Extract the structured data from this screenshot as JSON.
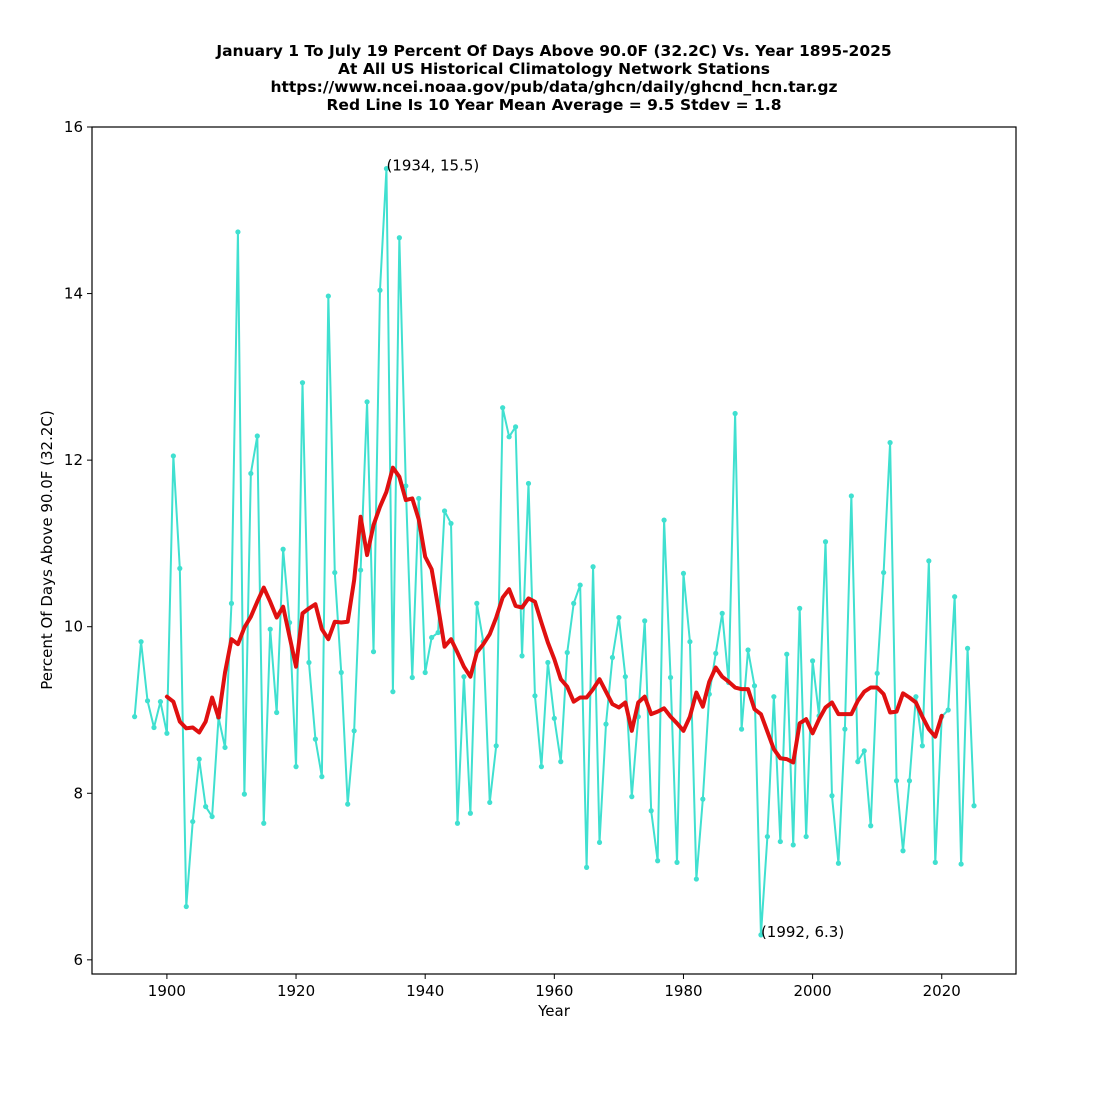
{
  "chart_data": {
    "type": "line",
    "title_lines": [
      "January 1 To July 19 Percent Of Days Above 90.0F (32.2C) Vs. Year 1895-2025",
      "At All US Historical Climatology Network Stations",
      "https://www.ncei.noaa.gov/pub/data/ghcn/daily/ghcnd_hcn.tar.gz",
      "Red Line Is 10 Year Mean  Average = 9.5 Stdev = 1.8"
    ],
    "xlabel": "Year",
    "ylabel": "Percent Of Days Above 90.0F (32.2C)",
    "xlim": [
      1888.4,
      2031.5
    ],
    "ylim": [
      5.83,
      16
    ],
    "xticks": [
      1900,
      1920,
      1940,
      1960,
      1980,
      2000,
      2020
    ],
    "xtick_labels": [
      "1900",
      "1920",
      "1940",
      "1960",
      "1980",
      "2000",
      "2020"
    ],
    "yticks": [
      6,
      8,
      10,
      12,
      14,
      16
    ],
    "ytick_labels": [
      "6",
      "8",
      "10",
      "12",
      "14",
      "16"
    ],
    "grid": false,
    "legend": null,
    "colors": {
      "series": "#40e0d0",
      "mean": "#e01010"
    },
    "series": [
      {
        "name": "Percent of days above 90.0F",
        "x_start": 1895,
        "values": [
          8.92,
          9.82,
          9.11,
          8.79,
          9.1,
          8.72,
          12.05,
          10.7,
          6.64,
          7.66,
          8.41,
          7.84,
          7.72,
          8.91,
          8.55,
          10.28,
          14.74,
          7.99,
          11.84,
          12.29,
          7.64,
          9.97,
          8.97,
          10.93,
          10.05,
          8.32,
          12.93,
          9.57,
          8.65,
          8.2,
          13.97,
          10.65,
          9.45,
          7.87,
          8.75,
          10.68,
          12.7,
          9.7,
          14.04,
          15.5,
          9.22,
          14.67,
          11.69,
          9.39,
          11.54,
          9.45,
          9.87,
          9.93,
          11.39,
          11.24,
          7.64,
          9.4,
          7.76,
          10.28,
          9.82,
          7.89,
          8.57,
          12.63,
          12.28,
          12.4,
          9.65,
          11.72,
          9.17,
          8.32,
          9.57,
          8.9,
          8.38,
          9.69,
          10.28,
          10.5,
          7.11,
          10.72,
          7.41,
          8.83,
          9.63,
          10.11,
          9.4,
          7.96,
          8.92,
          10.07,
          7.79,
          7.19,
          11.28,
          9.39,
          7.17,
          10.64,
          9.82,
          6.97,
          7.93,
          9.19,
          9.68,
          10.16,
          9.33,
          12.56,
          8.77,
          9.72,
          9.29,
          6.3,
          7.48,
          9.16,
          7.42,
          9.67,
          7.38,
          10.22,
          7.48,
          9.59,
          8.93,
          11.02,
          7.97,
          7.16,
          8.77,
          11.57,
          8.38,
          8.51,
          7.61,
          9.44,
          10.65,
          12.21,
          8.15,
          7.31,
          8.15,
          9.16,
          8.57,
          10.79,
          7.17,
          8.92,
          9.0,
          10.36,
          7.15,
          9.74,
          7.85
        ]
      },
      {
        "name": "10 Year Mean",
        "x_start": 1900,
        "values": [
          9.16,
          9.1,
          8.86,
          8.78,
          8.79,
          8.73,
          8.86,
          9.15,
          8.91,
          9.45,
          9.85,
          9.79,
          9.99,
          10.12,
          10.3,
          10.47,
          10.3,
          10.11,
          10.24,
          9.88,
          9.52,
          10.16,
          10.22,
          10.27,
          9.97,
          9.85,
          10.06,
          10.05,
          10.06,
          10.56,
          11.32,
          10.86,
          11.22,
          11.44,
          11.62,
          11.91,
          11.8,
          11.52,
          11.54,
          11.29,
          10.84,
          10.69,
          10.24,
          9.76,
          9.85,
          9.69,
          9.52,
          9.4,
          9.69,
          9.79,
          9.91,
          10.11,
          10.35,
          10.45,
          10.25,
          10.23,
          10.34,
          10.3,
          10.05,
          9.81,
          9.61,
          9.37,
          9.28,
          9.1,
          9.15,
          9.15,
          9.25,
          9.37,
          9.22,
          9.07,
          9.03,
          9.09,
          8.75,
          9.09,
          9.16,
          8.95,
          8.98,
          9.02,
          8.92,
          8.84,
          8.75,
          8.92,
          9.21,
          9.04,
          9.34,
          9.51,
          9.4,
          9.34,
          9.27,
          9.25,
          9.25,
          9.01,
          8.95,
          8.74,
          8.53,
          8.42,
          8.41,
          8.37,
          8.84,
          8.89,
          8.72,
          8.89,
          9.03,
          9.09,
          8.95,
          8.95,
          8.95,
          9.11,
          9.22,
          9.27,
          9.27,
          9.19,
          8.97,
          8.98,
          9.2,
          9.15,
          9.09,
          8.92,
          8.77,
          8.68,
          8.93
        ]
      }
    ],
    "annotations": [
      {
        "text": "(1934, 15.5)",
        "x": 1934,
        "y": 15.5
      },
      {
        "text": "(1992, 6.3)",
        "x": 1992,
        "y": 6.3
      }
    ]
  }
}
